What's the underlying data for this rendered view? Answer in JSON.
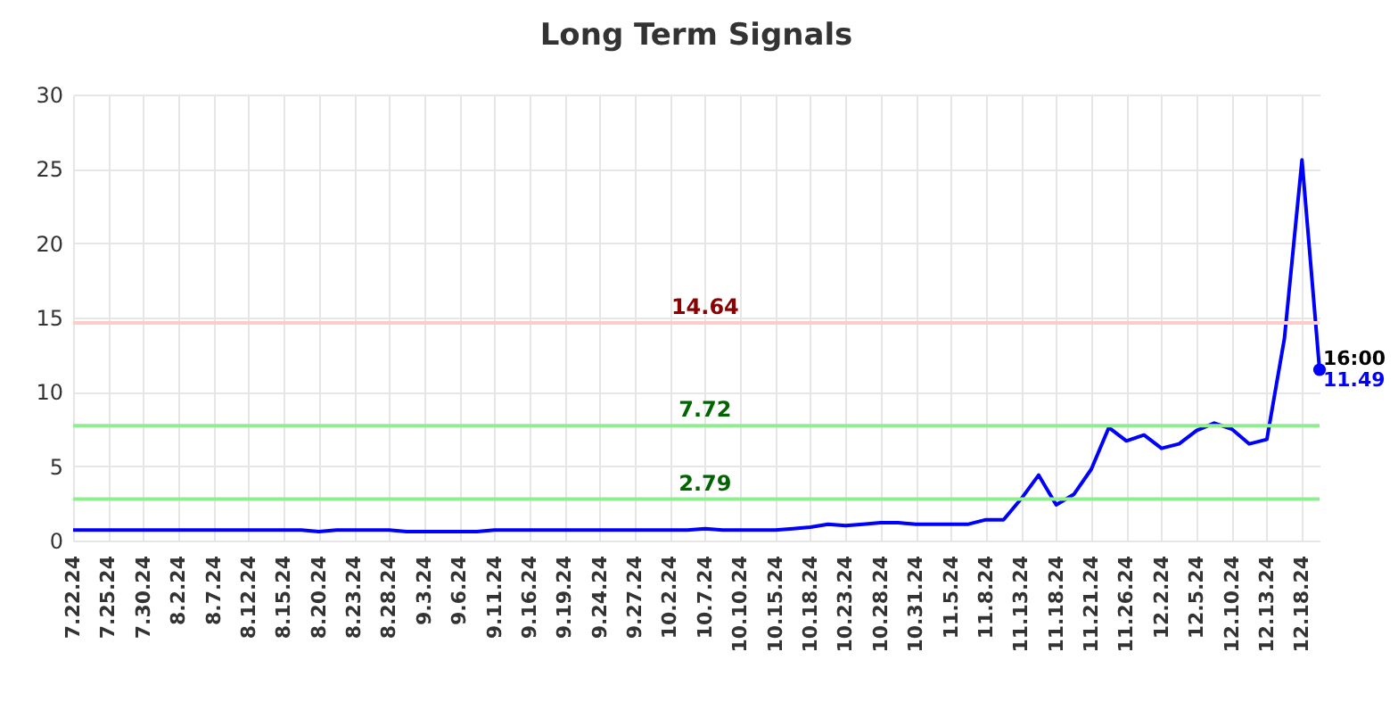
{
  "chart_data": {
    "type": "line",
    "title": "Long Term Signals",
    "categories": [
      "7.22.24",
      null,
      "7.25.24",
      null,
      "7.30.24",
      null,
      "8.2.24",
      null,
      "8.7.24",
      null,
      "8.12.24",
      null,
      "8.15.24",
      null,
      "8.20.24",
      null,
      "8.23.24",
      null,
      "8.28.24",
      null,
      "9.3.24",
      null,
      "9.6.24",
      null,
      "9.11.24",
      null,
      "9.16.24",
      null,
      "9.19.24",
      null,
      "9.24.24",
      null,
      "9.27.24",
      null,
      "10.2.24",
      null,
      "10.7.24",
      null,
      "10.10.24",
      null,
      "10.15.24",
      null,
      "10.18.24",
      null,
      "10.23.24",
      null,
      "10.28.24",
      null,
      "10.31.24",
      null,
      "11.5.24",
      null,
      "11.8.24",
      null,
      "11.13.24",
      null,
      "11.18.24",
      null,
      "11.21.24",
      null,
      "11.26.24",
      null,
      "12.2.24",
      null,
      "12.5.24",
      null,
      "12.10.24",
      null,
      "12.13.24",
      null,
      "12.18.24",
      null
    ],
    "series": [
      {
        "color": "#0000ff",
        "values": [
          0.7,
          0.7,
          0.7,
          0.7,
          0.7,
          0.7,
          0.7,
          0.7,
          0.7,
          0.7,
          0.7,
          0.7,
          0.7,
          0.7,
          0.6,
          0.7,
          0.7,
          0.7,
          0.7,
          0.6,
          0.6,
          0.6,
          0.6,
          0.6,
          0.7,
          0.7,
          0.7,
          0.7,
          0.7,
          0.7,
          0.7,
          0.7,
          0.7,
          0.7,
          0.7,
          0.7,
          0.8,
          0.7,
          0.7,
          0.7,
          0.7,
          0.8,
          0.9,
          1.1,
          1.0,
          1.1,
          1.2,
          1.2,
          1.1,
          1.1,
          1.1,
          1.1,
          1.4,
          1.4,
          2.8,
          4.4,
          2.4,
          3.1,
          4.8,
          7.6,
          6.7,
          7.1,
          6.2,
          6.5,
          7.4,
          7.9,
          7.5,
          6.5,
          6.8,
          13.6,
          25.6,
          11.49
        ],
        "value_labels": [
          null,
          null,
          null,
          null,
          null,
          null,
          null,
          null,
          null,
          null,
          null,
          null,
          null,
          null,
          null,
          null,
          null,
          null,
          null,
          null,
          null,
          null,
          null,
          null,
          null,
          null,
          null,
          null,
          null,
          null,
          null,
          null,
          null,
          null,
          null,
          null,
          null,
          null,
          null,
          null,
          null,
          null,
          null,
          null,
          null,
          null,
          null,
          null,
          null,
          null,
          null,
          null,
          null,
          null,
          null,
          null,
          null,
          null,
          null,
          null,
          null,
          null,
          null,
          null,
          null,
          null,
          null,
          null,
          null,
          null,
          null,
          "11.49"
        ]
      }
    ],
    "annotations": [
      "16:00"
    ],
    "ref_lines": [
      {
        "axis": "y",
        "value": 14.64,
        "label": "14.64",
        "color": "#ffcccc"
      },
      {
        "axis": "y",
        "value": 7.72,
        "label": "7.72",
        "color": "#90ee90"
      },
      {
        "axis": "y",
        "value": 2.79,
        "label": "2.79",
        "color": "#90ee90"
      }
    ],
    "ylim": [
      0,
      30
    ],
    "yticks": [
      0,
      5,
      10,
      15,
      20,
      25,
      30
    ],
    "grid": true
  }
}
